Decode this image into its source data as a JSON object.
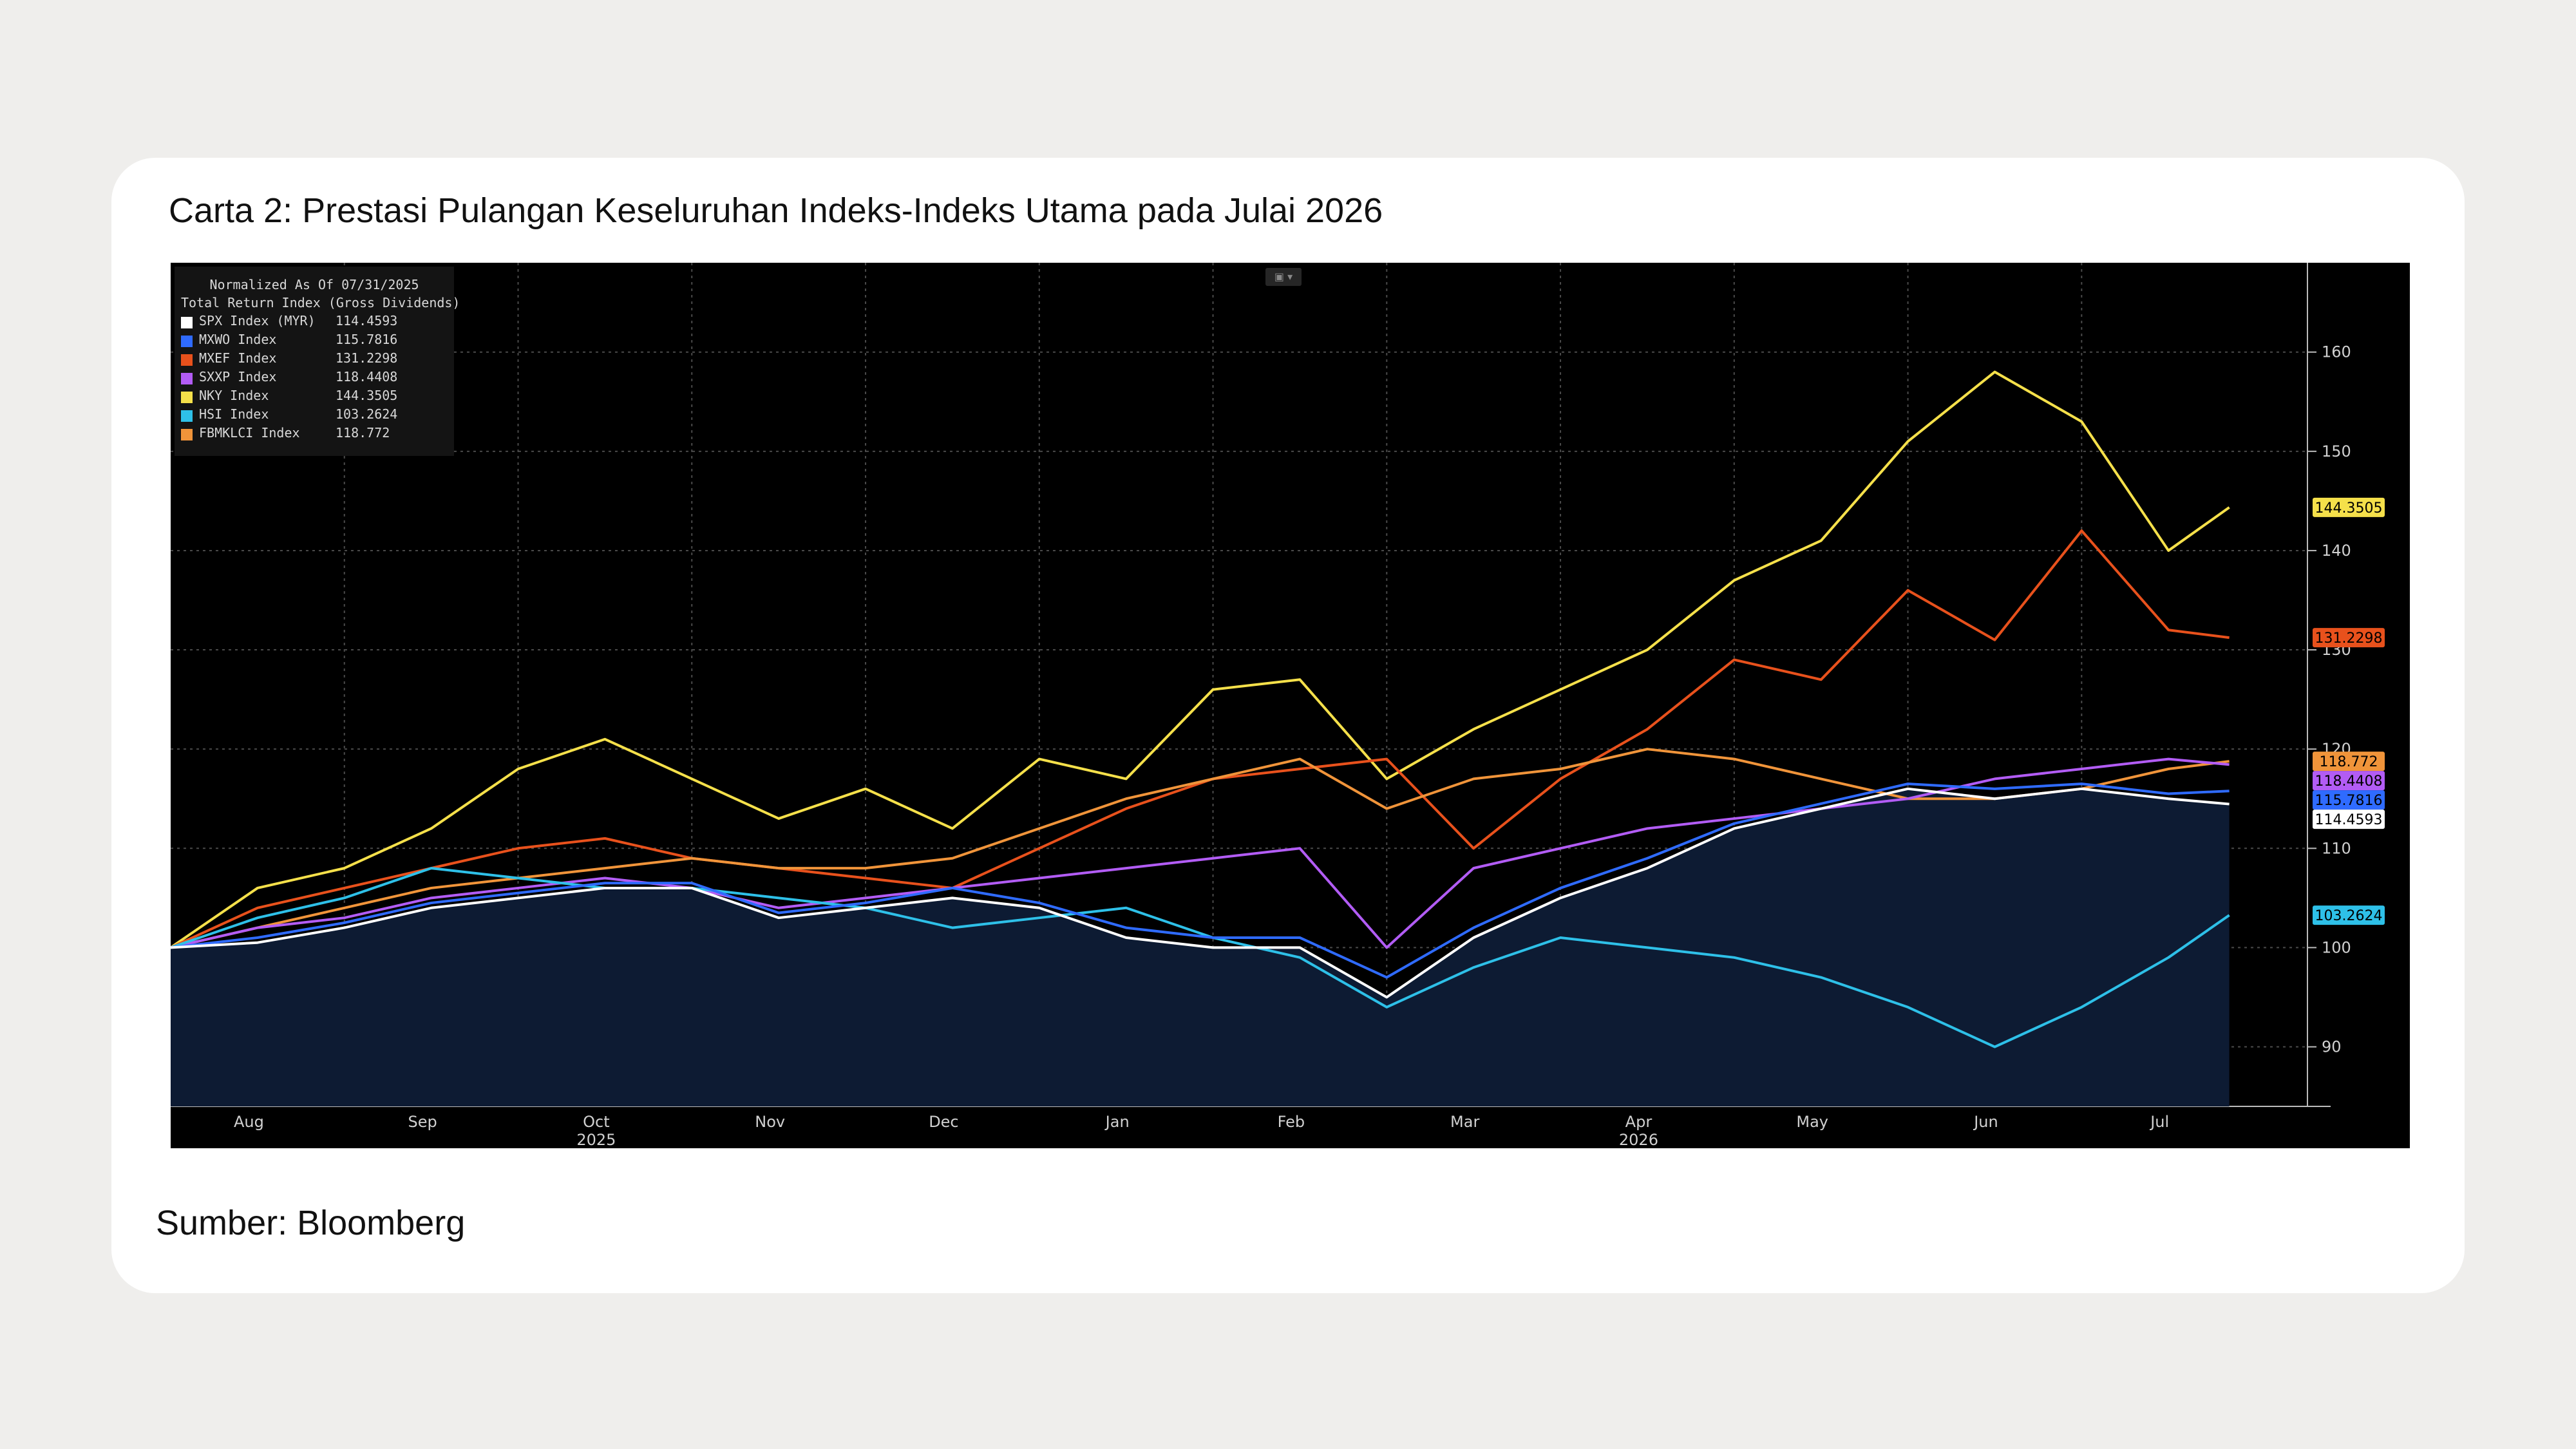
{
  "title": "Carta 2: Prestasi Pulangan Keseluruhan Indeks-Indeks Utama pada Julai 2026",
  "source": "Sumber: Bloomberg",
  "chart_data": {
    "type": "line",
    "legend_header": "Normalized As Of 07/31/2025",
    "legend_subheader": "Total Return Index (Gross Dividends)",
    "legend_position": "top-left",
    "grid": true,
    "ylim": [
      84,
      169
    ],
    "y_ticks": [
      "90",
      "100",
      "110",
      "120",
      "130",
      "140",
      "150",
      "160"
    ],
    "x_ticks": [
      "Aug",
      "Sep",
      "Oct",
      "Nov",
      "Dec",
      "Jan",
      "Feb",
      "Mar",
      "Apr",
      "May",
      "Jun",
      "Jul"
    ],
    "x_year_labels": [
      {
        "label": "2025",
        "at": "Oct"
      },
      {
        "label": "2026",
        "at": "Apr"
      }
    ],
    "x_months_index": [
      0,
      12
    ],
    "series": [
      {
        "name": "SPX Index (MYR)",
        "last": "114.4593",
        "color": "#ffffff",
        "x": [
          0,
          0.5,
          1,
          1.5,
          2,
          2.5,
          3,
          3.5,
          4,
          4.5,
          5,
          5.5,
          6,
          6.5,
          7,
          7.5,
          8,
          8.5,
          9,
          9.5,
          10,
          10.5,
          11,
          11.5,
          11.85
        ],
        "y": [
          100,
          100.5,
          102,
          104,
          105,
          106,
          106,
          103,
          104,
          105,
          104,
          101,
          100,
          100,
          95,
          101,
          105,
          108,
          112,
          114,
          116,
          115,
          116,
          115,
          114.46
        ]
      },
      {
        "name": "MXWO Index",
        "last": "115.7816",
        "color": "#2f6bff",
        "x": [
          0,
          0.5,
          1,
          1.5,
          2,
          2.5,
          3,
          3.5,
          4,
          4.5,
          5,
          5.5,
          6,
          6.5,
          7,
          7.5,
          8,
          8.5,
          9,
          9.5,
          10,
          10.5,
          11,
          11.5,
          11.85
        ],
        "y": [
          100,
          101,
          102.5,
          104.5,
          105.5,
          106.5,
          106.5,
          103.5,
          104.5,
          106,
          104.5,
          102,
          101,
          101,
          97,
          102,
          106,
          109,
          112.5,
          114.5,
          116.5,
          116,
          116.5,
          115.5,
          115.78
        ]
      },
      {
        "name": "MXEF Index",
        "last": "131.2298",
        "color": "#e8511c",
        "x": [
          0,
          0.5,
          1,
          1.5,
          2,
          2.5,
          3,
          3.5,
          4,
          4.5,
          5,
          5.5,
          6,
          6.5,
          7,
          7.5,
          8,
          8.5,
          9,
          9.5,
          10,
          10.5,
          11,
          11.5,
          11.85
        ],
        "y": [
          100,
          104,
          106,
          108,
          110,
          111,
          109,
          108,
          107,
          106,
          110,
          114,
          117,
          118,
          119,
          110,
          117,
          122,
          129,
          127,
          136,
          131,
          142,
          132,
          131.23
        ]
      },
      {
        "name": "SXXP Index",
        "last": "118.4408",
        "color": "#b25cf5",
        "x": [
          0,
          0.5,
          1,
          1.5,
          2,
          2.5,
          3,
          3.5,
          4,
          4.5,
          5,
          5.5,
          6,
          6.5,
          7,
          7.5,
          8,
          8.5,
          9,
          9.5,
          10,
          10.5,
          11,
          11.5,
          11.85
        ],
        "y": [
          100,
          102,
          103,
          105,
          106,
          107,
          106,
          104,
          105,
          106,
          107,
          108,
          109,
          110,
          100,
          108,
          110,
          112,
          113,
          114,
          115,
          117,
          118,
          119,
          118.44
        ]
      },
      {
        "name": "NKY Index",
        "last": "144.3505",
        "color": "#f5e04a",
        "x": [
          0,
          0.5,
          1,
          1.5,
          2,
          2.5,
          3,
          3.5,
          4,
          4.5,
          5,
          5.5,
          6,
          6.5,
          7,
          7.5,
          8,
          8.5,
          9,
          9.5,
          10,
          10.5,
          11,
          11.5,
          11.85
        ],
        "y": [
          100,
          106,
          108,
          112,
          118,
          121,
          117,
          113,
          116,
          112,
          119,
          117,
          126,
          127,
          117,
          122,
          126,
          130,
          137,
          141,
          151,
          158,
          153,
          140,
          144.35
        ]
      },
      {
        "name": "HSI Index",
        "last": "103.2624",
        "color": "#2ec0e8",
        "x": [
          0,
          0.5,
          1,
          1.5,
          2,
          2.5,
          3,
          3.5,
          4,
          4.5,
          5,
          5.5,
          6,
          6.5,
          7,
          7.5,
          8,
          8.5,
          9,
          9.5,
          10,
          10.5,
          11,
          11.5,
          11.85
        ],
        "y": [
          100,
          103,
          105,
          108,
          107,
          106,
          106,
          105,
          104,
          102,
          103,
          104,
          101,
          99,
          94,
          98,
          101,
          100,
          99,
          97,
          94,
          90,
          94,
          99,
          103.26
        ]
      },
      {
        "name": "FBMKLCI Index",
        "last": "118.772",
        "color": "#f0943a",
        "x": [
          0,
          0.5,
          1,
          1.5,
          2,
          2.5,
          3,
          3.5,
          4,
          4.5,
          5,
          5.5,
          6,
          6.5,
          7,
          7.5,
          8,
          8.5,
          9,
          9.5,
          10,
          10.5,
          11,
          11.5,
          11.85
        ],
        "y": [
          100,
          102,
          104,
          106,
          107,
          108,
          109,
          108,
          108,
          109,
          112,
          115,
          117,
          119,
          114,
          117,
          118,
          120,
          119,
          117,
          115,
          115,
          116,
          118,
          118.77
        ]
      }
    ]
  }
}
